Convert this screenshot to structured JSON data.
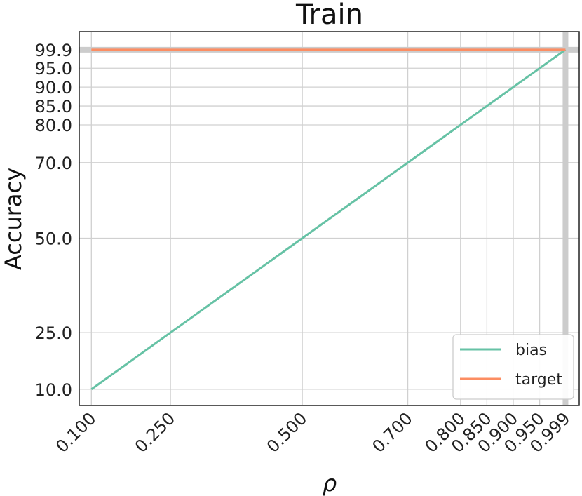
{
  "chart_data": {
    "type": "line",
    "title": "Train",
    "xlabel": "ρ",
    "ylabel": "Accuracy",
    "x": [
      0.1,
      0.999
    ],
    "series": [
      {
        "name": "bias",
        "color": "#66c2a5",
        "values": [
          10.0,
          99.9
        ]
      },
      {
        "name": "target",
        "color": "#fc8d62",
        "values": [
          99.9,
          99.9
        ]
      }
    ],
    "xticks": [
      0.1,
      0.25,
      0.5,
      0.7,
      0.8,
      0.85,
      0.9,
      0.95,
      0.999
    ],
    "xtick_labels": [
      "0.100",
      "0.250",
      "0.500",
      "0.700",
      "0.800",
      "0.850",
      "0.900",
      "0.950",
      "0.999"
    ],
    "yticks": [
      10.0,
      25.0,
      50.0,
      70.0,
      80.0,
      85.0,
      90.0,
      95.0,
      99.9
    ],
    "ytick_labels": [
      "10.0",
      "25.0",
      "50.0",
      "70.0",
      "80.0",
      "85.0",
      "90.0",
      "95.0",
      "99.9"
    ],
    "xlim": [
      0.077,
      1.025
    ],
    "ylim": [
      5.7,
      104.7
    ],
    "grid": true,
    "highlight_line": {
      "x": 0.999,
      "y": 99.9
    },
    "legend_position": "lower-right"
  }
}
